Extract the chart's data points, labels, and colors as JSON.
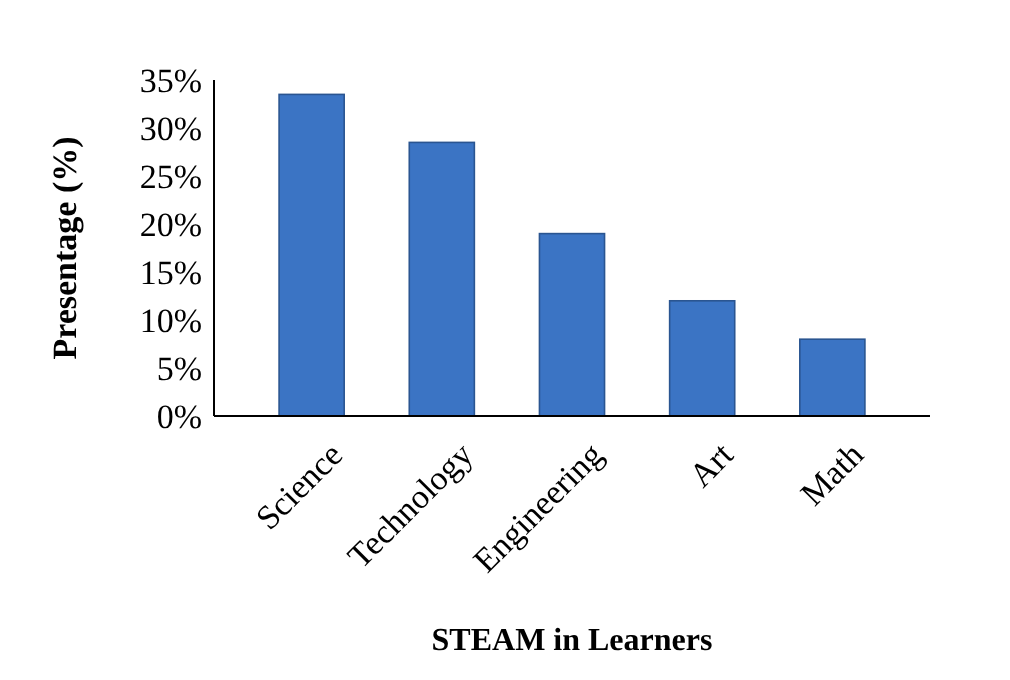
{
  "chart_data": {
    "type": "bar",
    "xlabel": "STEAM in Learners",
    "ylabel": "Presentage (%)",
    "categories": [
      "Science",
      "Technology",
      "Engineering",
      "Art",
      "Math"
    ],
    "values": [
      33.5,
      28.5,
      19,
      12,
      8
    ],
    "color": "#3b74c4",
    "ylim": [
      0,
      35
    ],
    "yticks": [
      {
        "value": 0,
        "label": "0%"
      },
      {
        "value": 5,
        "label": "5%"
      },
      {
        "value": 10,
        "label": "10%"
      },
      {
        "value": 15,
        "label": "15%"
      },
      {
        "value": 20,
        "label": "20%"
      },
      {
        "value": 25,
        "label": "25%"
      },
      {
        "value": 30,
        "label": "30%"
      },
      {
        "value": 35,
        "label": "35%"
      }
    ],
    "grid": false
  }
}
